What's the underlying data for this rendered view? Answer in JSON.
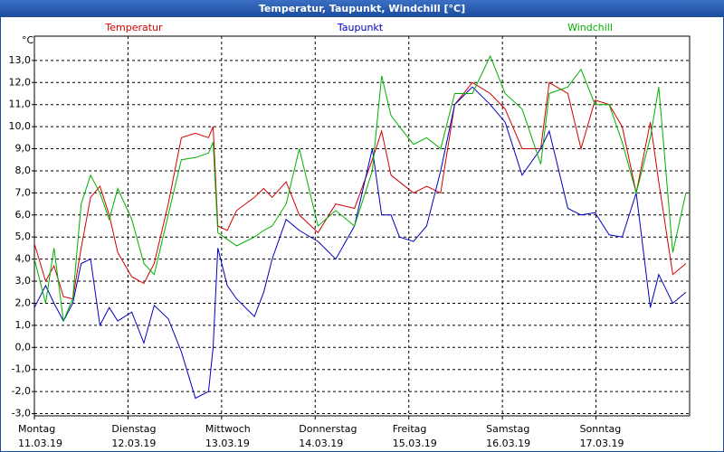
{
  "chart_data": {
    "type": "line",
    "title": "Temperatur, Taupunkt, Windchill [°C]",
    "y_unit": "°C",
    "xlim": [
      0,
      7
    ],
    "xticks": [
      {
        "value": 0,
        "label": "Montag"
      },
      {
        "value": 1,
        "label": "Dienstag"
      },
      {
        "value": 2,
        "label": "Mittwoch"
      },
      {
        "value": 3,
        "label": "Donnerstag"
      },
      {
        "value": 4,
        "label": "Freitag"
      },
      {
        "value": 5,
        "label": "Samstag"
      },
      {
        "value": 6,
        "label": "Sonntag"
      }
    ],
    "xtick_dates": [
      "11.03.19",
      "12.03.19",
      "13.03.19",
      "14.03.19",
      "15.03.19",
      "16.03.19",
      "17.03.19"
    ],
    "ylim": [
      -3.1,
      14.1
    ],
    "yticks": [
      {
        "value": -3,
        "label": "-3,0"
      },
      {
        "value": -2,
        "label": "-2,0"
      },
      {
        "value": -1,
        "label": "-1,0"
      },
      {
        "value": 0,
        "label": "0,0"
      },
      {
        "value": 1,
        "label": "1,0"
      },
      {
        "value": 2,
        "label": "2,0"
      },
      {
        "value": 3,
        "label": "3,0"
      },
      {
        "value": 4,
        "label": "4,0"
      },
      {
        "value": 5,
        "label": "5,0"
      },
      {
        "value": 6,
        "label": "6,0"
      },
      {
        "value": 7,
        "label": "7,0"
      },
      {
        "value": 8,
        "label": "8,0"
      },
      {
        "value": 9,
        "label": "9,0"
      },
      {
        "value": 10,
        "label": "10,0"
      },
      {
        "value": 11,
        "label": "11,0"
      },
      {
        "value": 12,
        "label": "12,0"
      },
      {
        "value": 13,
        "label": "13,0"
      }
    ],
    "grid": true,
    "x": [
      0,
      0.12,
      0.21,
      0.31,
      0.41,
      0.5,
      0.6,
      0.7,
      0.8,
      0.89,
      1.04,
      1.17,
      1.28,
      1.43,
      1.57,
      1.72,
      1.86,
      1.91,
      1.96,
      2.06,
      2.16,
      2.35,
      2.45,
      2.54,
      2.69,
      2.83,
      3.03,
      3.22,
      3.42,
      3.61,
      3.71,
      3.81,
      3.9,
      4.05,
      4.19,
      4.34,
      4.49,
      4.68,
      4.87,
      5.03,
      5.21,
      5.41,
      5.5,
      5.7,
      5.84,
      5.99,
      6.14,
      6.28,
      6.43,
      6.58,
      6.67,
      6.82,
      6.96
    ],
    "series": [
      {
        "name": "Temperatur",
        "color": "#d00000",
        "values": [
          4.7,
          3.0,
          3.7,
          2.3,
          2.2,
          4.5,
          6.8,
          7.3,
          6.0,
          4.3,
          3.2,
          2.9,
          3.8,
          6.5,
          9.5,
          9.7,
          9.5,
          10.0,
          5.5,
          5.3,
          6.2,
          6.8,
          7.2,
          6.8,
          7.5,
          6.0,
          5.2,
          6.5,
          6.3,
          8.5,
          9.8,
          7.8,
          7.5,
          7.0,
          7.3,
          7.0,
          11.0,
          12.0,
          11.5,
          10.8,
          9.0,
          9.0,
          12.0,
          11.5,
          9.0,
          11.2,
          11.0,
          10.0,
          7.0,
          10.2,
          7.5,
          3.3,
          3.8
        ]
      },
      {
        "name": "Taupunkt",
        "color": "#0000c0",
        "values": [
          1.8,
          2.8,
          2.0,
          1.2,
          2.0,
          3.8,
          4.0,
          1.0,
          1.8,
          1.2,
          1.6,
          0.2,
          1.9,
          1.3,
          -0.2,
          -2.3,
          -2.0,
          0.0,
          4.5,
          2.8,
          2.2,
          1.4,
          2.5,
          4.0,
          5.8,
          5.3,
          4.8,
          4.0,
          5.5,
          9.0,
          6.0,
          6.0,
          5.0,
          4.8,
          5.5,
          8.0,
          11.0,
          11.8,
          11.0,
          10.2,
          7.8,
          9.0,
          9.8,
          6.3,
          6.0,
          6.1,
          5.1,
          5.0,
          7.0,
          1.8,
          3.3,
          2.0,
          2.5
        ]
      },
      {
        "name": "Windchill",
        "color": "#00b000",
        "values": [
          4.0,
          2.0,
          4.5,
          1.2,
          2.2,
          6.5,
          7.8,
          7.0,
          5.8,
          7.2,
          5.8,
          3.8,
          3.3,
          6.0,
          8.5,
          8.6,
          8.8,
          9.3,
          5.2,
          4.9,
          4.6,
          5.0,
          5.3,
          5.5,
          6.5,
          9.0,
          5.5,
          6.2,
          5.5,
          8.0,
          12.3,
          10.5,
          10.0,
          9.2,
          9.5,
          9.0,
          11.5,
          11.5,
          13.2,
          11.5,
          10.8,
          8.3,
          11.5,
          11.8,
          12.6,
          11.0,
          11.0,
          9.3,
          7.0,
          9.5,
          11.8,
          4.3,
          7.0
        ]
      }
    ]
  }
}
